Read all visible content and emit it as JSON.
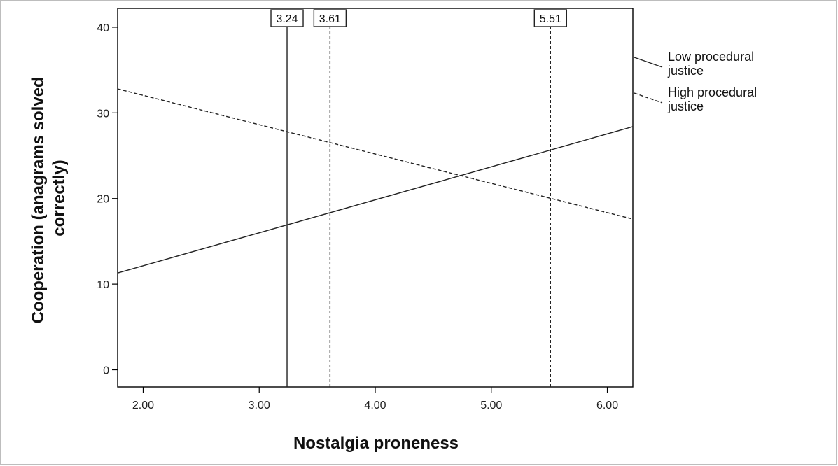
{
  "chart_data": {
    "type": "line",
    "xlabel": "Nostalgia proneness",
    "ylabel_lines": [
      "Cooperation (anagrams solved",
      "correctly)"
    ],
    "xlim": [
      1.78,
      6.22
    ],
    "ylim": [
      -2,
      42.2
    ],
    "xticks": [
      {
        "value": 2,
        "label": "2.00"
      },
      {
        "value": 3,
        "label": "3.00"
      },
      {
        "value": 4,
        "label": "4.00"
      },
      {
        "value": 5,
        "label": "5.00"
      },
      {
        "value": 6,
        "label": "6.00"
      }
    ],
    "yticks": [
      {
        "value": 0,
        "label": "0"
      },
      {
        "value": 10,
        "label": "10"
      },
      {
        "value": 20,
        "label": "20"
      },
      {
        "value": 30,
        "label": "30"
      },
      {
        "value": 40,
        "label": "40"
      }
    ],
    "series": [
      {
        "name_lines": [
          "Low procedural",
          "justice"
        ],
        "dash": "solid",
        "x": [
          1.78,
          6.22
        ],
        "y": [
          11.3,
          28.4
        ]
      },
      {
        "name_lines": [
          "High procedural",
          "justice"
        ],
        "dash": "dashed",
        "x": [
          1.78,
          6.22
        ],
        "y": [
          32.8,
          17.6
        ]
      }
    ],
    "reference_lines": [
      {
        "x": 3.24,
        "label": "3.24",
        "dash": "solid"
      },
      {
        "x": 3.61,
        "label": "3.61",
        "dash": "dashed"
      },
      {
        "x": 5.51,
        "label": "5.51",
        "dash": "dashed"
      }
    ],
    "legend_position": "right",
    "grid": false
  }
}
